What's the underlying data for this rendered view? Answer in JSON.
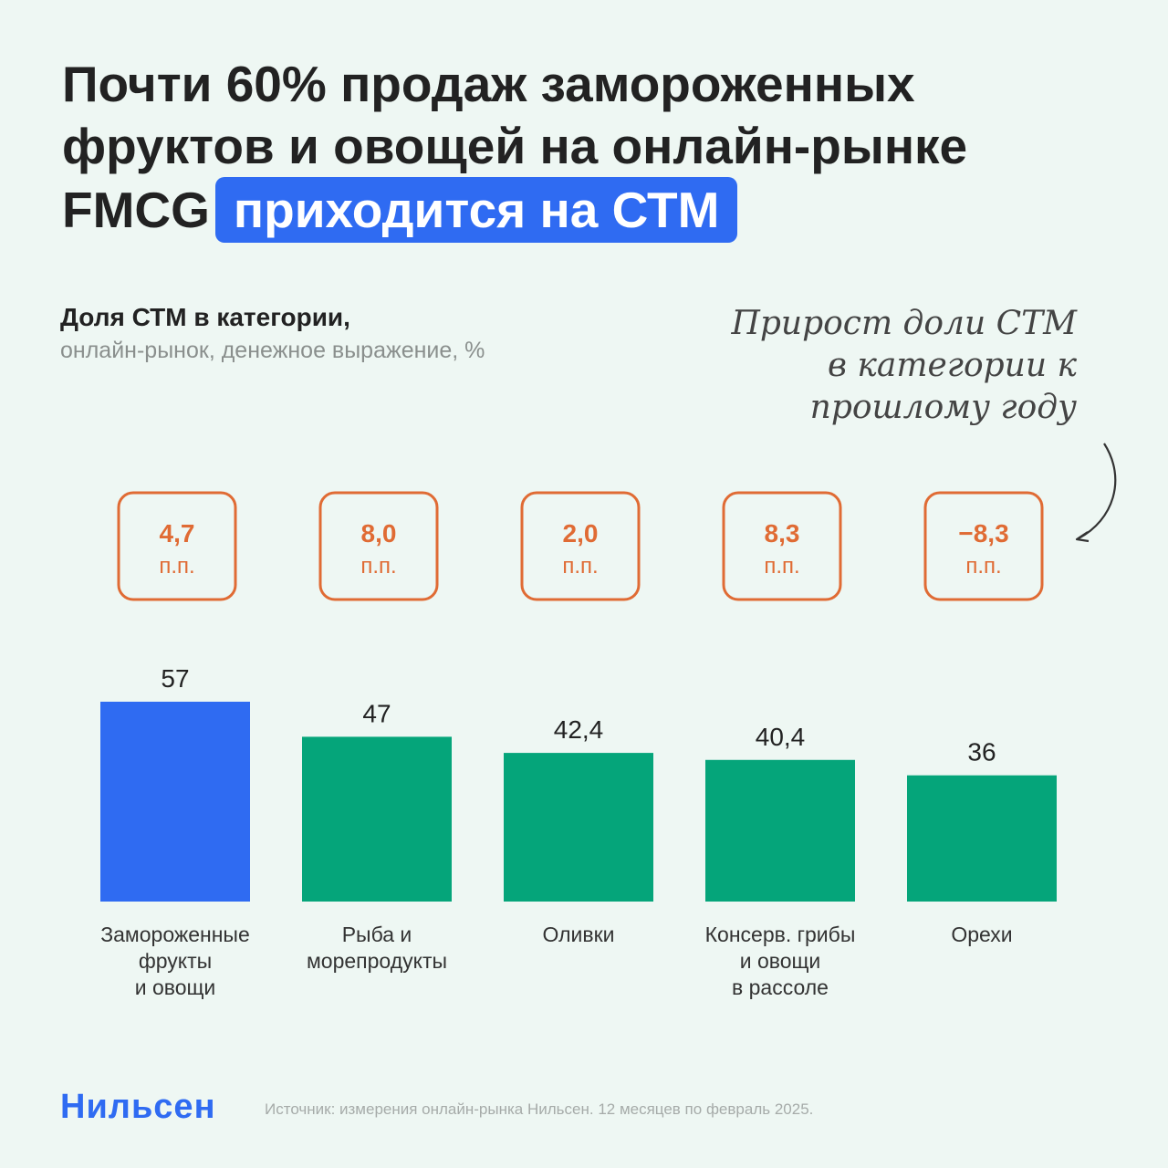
{
  "headline": {
    "line1": "Почти 60% продаж замороженных",
    "line2": "фруктов и овощей на онлайн-рынке",
    "line3_prefix": "FMCG",
    "line3_highlight": "приходится на СТМ"
  },
  "subtitle": {
    "main": "Доля СТМ в категории,",
    "sub": "онлайн-рынок, денежное выражение, %"
  },
  "note": {
    "line1": "Прирост доли СТМ",
    "line2": "в категории к",
    "line3": "прошлому году"
  },
  "colors": {
    "highlight": "#2f6bf2",
    "bar_green": "#05a57a",
    "bar_blue": "#2f6bf2",
    "badge": "#e06b34"
  },
  "chart_data": {
    "type": "bar",
    "categories": [
      [
        "Замороженные",
        "фрукты",
        "и овощи"
      ],
      [
        "Рыба и",
        "морепродукты"
      ],
      [
        "Оливки"
      ],
      [
        "Консерв. грибы",
        "и овощи",
        "в рассоле"
      ],
      [
        "Орехи"
      ]
    ],
    "values": [
      57,
      47,
      42.4,
      40.4,
      36
    ],
    "value_labels": [
      "57",
      "47",
      "42,4",
      "40,4",
      "36"
    ],
    "bar_colors": [
      "#2f6bf2",
      "#05a57a",
      "#05a57a",
      "#05a57a",
      "#05a57a"
    ],
    "change_values": [
      4.7,
      8.0,
      2.0,
      8.3,
      -8.3
    ],
    "change_labels": [
      "4,7",
      "8,0",
      "2,0",
      "8,3",
      "−8,3"
    ],
    "change_unit": "п.п.",
    "ylim": [
      0,
      57
    ],
    "grid": false
  },
  "footer": {
    "logo": "Нильсен",
    "source": "Источник: измерения онлайн-рынка Нильсен. 12 месяцев по февраль 2025."
  }
}
